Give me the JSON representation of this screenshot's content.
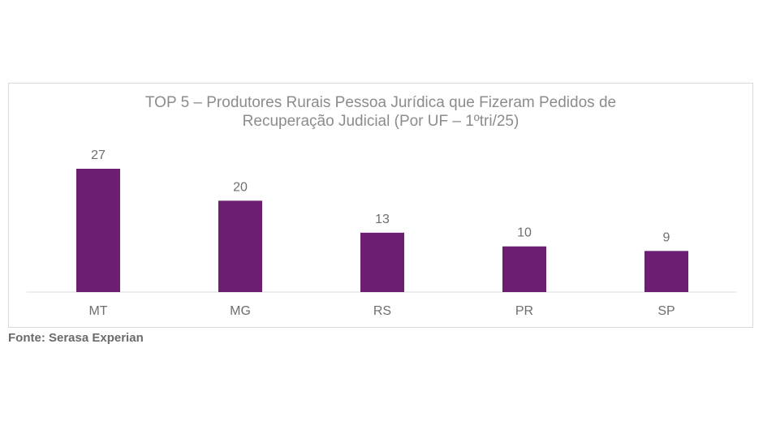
{
  "chart_data": {
    "type": "bar",
    "title_line1": "TOP 5 – Produtores Rurais Pessoa Jurídica que Fizeram Pedidos de",
    "title_line2": "Recuperação Judicial (Por UF – 1ºtri/25)",
    "categories": [
      "MT",
      "MG",
      "RS",
      "PR",
      "SP"
    ],
    "values": [
      27,
      20,
      13,
      10,
      9
    ],
    "ylim": [
      0,
      27
    ],
    "grid": false,
    "legend": "none",
    "bar_color": "#6b1f73"
  },
  "footer": {
    "source": "Fonte: Serasa Experian"
  }
}
